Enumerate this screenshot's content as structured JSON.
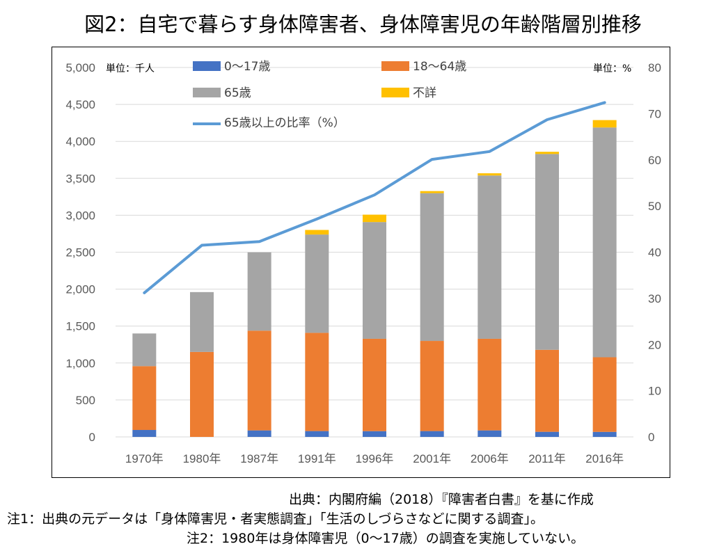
{
  "title": "図2：自宅で暮らす身体障害者、身体障害児の年齢階層別推移",
  "units": {
    "left": "単位：千人",
    "right": "単位：%"
  },
  "notes": {
    "source": "出典：内閣府編（2018）『障害者白書』を基に作成",
    "note1": "注1：出典の元データは「身体障害児・者実態調査」「生活のしづらさなどに関する調査」。",
    "note2": "注2：1980年は身体障害児（0〜17歳）の調査を実施していない。"
  },
  "chart_data": {
    "type": "bar",
    "stacked": true,
    "categories": [
      "1970年",
      "1980年",
      "1987年",
      "1991年",
      "1996年",
      "2001年",
      "2006年",
      "2011年",
      "2016年"
    ],
    "series": [
      {
        "name": "0〜17歳",
        "color": "#4472C4",
        "values": [
          94,
          0,
          88,
          79,
          78,
          79,
          88,
          69,
          68
        ]
      },
      {
        "name": "18〜64歳",
        "color": "#ED7D31",
        "values": [
          864,
          1150,
          1350,
          1330,
          1250,
          1220,
          1240,
          1110,
          1010
        ]
      },
      {
        "name": "65歳",
        "color": "#A5A5A5",
        "values": [
          442,
          810,
          1060,
          1330,
          1580,
          2000,
          2210,
          2650,
          3110
        ]
      },
      {
        "name": "不詳",
        "color": "#FFC000",
        "values": [
          0,
          0,
          0,
          62,
          100,
          28,
          30,
          30,
          100
        ]
      }
    ],
    "line_series": {
      "name": "65歳以上の比率（%）",
      "color": "#5B9BD5",
      "axis": "right",
      "values": [
        31.2,
        41.5,
        42.3,
        47.2,
        52.4,
        60.1,
        61.8,
        68.7,
        72.4
      ]
    },
    "ylim": [
      0,
      5000
    ],
    "yticks": [
      "0",
      "500",
      "1,000",
      "1,500",
      "2,000",
      "2,500",
      "3,000",
      "3,500",
      "4,000",
      "4,500",
      "5,000"
    ],
    "y2lim": [
      0,
      80
    ],
    "y2ticks": [
      "0",
      "10",
      "20",
      "30",
      "40",
      "50",
      "60",
      "70",
      "80"
    ],
    "grid": true,
    "legend_position": "top"
  }
}
